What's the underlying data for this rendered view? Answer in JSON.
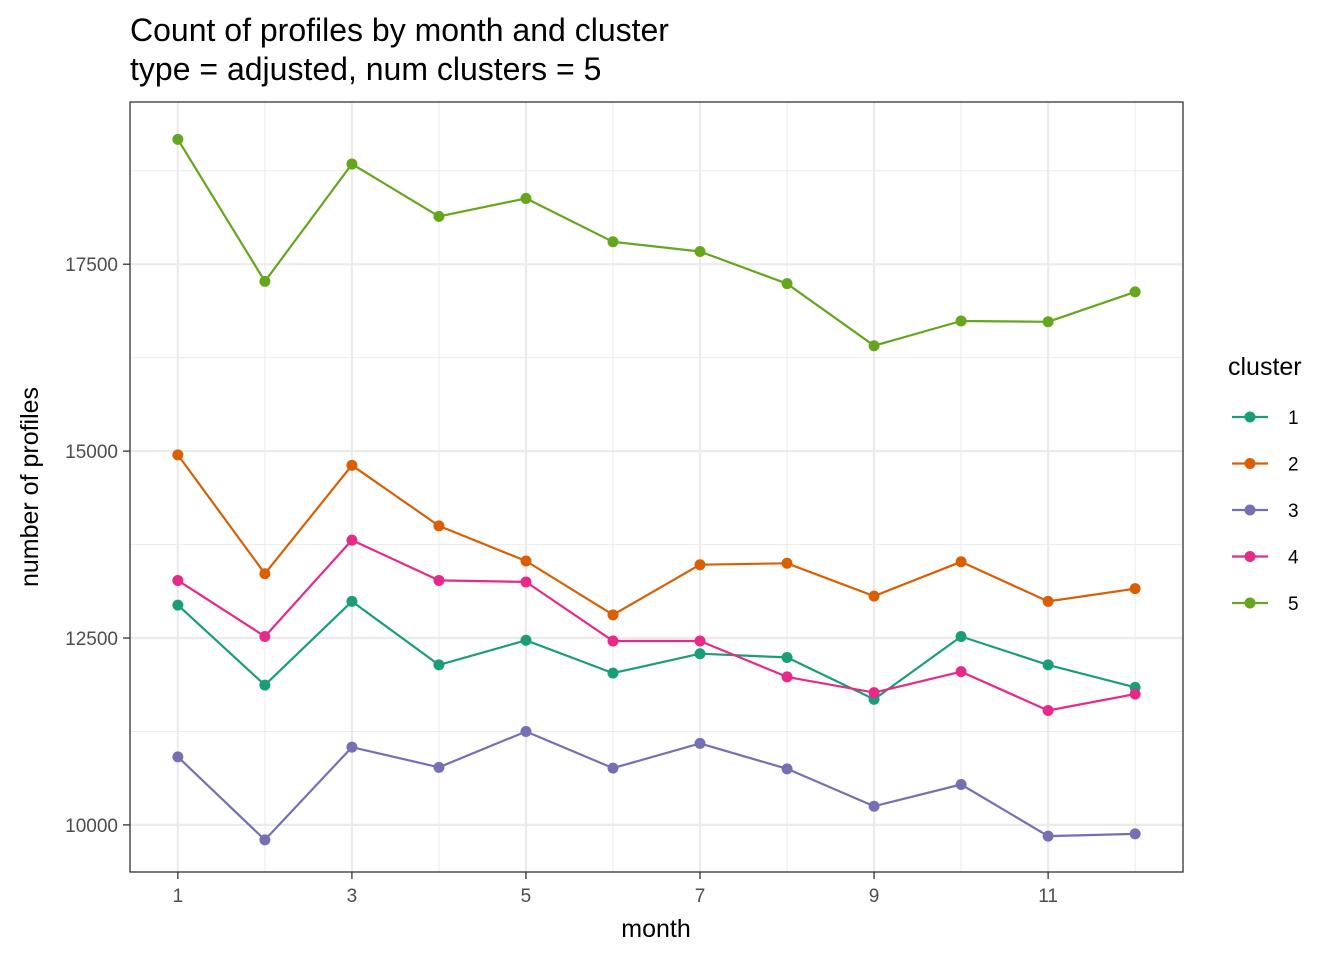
{
  "chart_data": {
    "type": "line",
    "title": "Count of profiles by month and cluster",
    "subtitle": "type = adjusted, num clusters = 5",
    "xlabel": "month",
    "ylabel": "number of profiles",
    "x": [
      1,
      2,
      3,
      4,
      5,
      6,
      7,
      8,
      9,
      10,
      11,
      12
    ],
    "x_ticks": [
      1,
      3,
      5,
      7,
      9,
      11
    ],
    "y_ticks": [
      10000,
      12500,
      15000,
      17500
    ],
    "xlim": [
      0.45,
      12.55
    ],
    "ylim": [
      9370,
      19670
    ],
    "grid": true,
    "legend": {
      "title": "cluster",
      "position": "right"
    },
    "series": [
      {
        "name": "1",
        "color": "#1b9e77",
        "values": [
          12940,
          11870,
          12990,
          12140,
          12470,
          12030,
          12290,
          12240,
          11680,
          12520,
          12140,
          11840
        ]
      },
      {
        "name": "2",
        "color": "#d95f02",
        "values": [
          14950,
          13360,
          14810,
          14000,
          13530,
          12810,
          13480,
          13500,
          13060,
          13520,
          12990,
          13160
        ]
      },
      {
        "name": "3",
        "color": "#7570b3",
        "values": [
          10910,
          9800,
          11040,
          10770,
          11250,
          10760,
          11090,
          10750,
          10250,
          10540,
          9850,
          9880
        ]
      },
      {
        "name": "4",
        "color": "#e7298a",
        "values": [
          13270,
          12520,
          13810,
          13270,
          13250,
          12460,
          12460,
          11980,
          11770,
          12050,
          11530,
          11750
        ]
      },
      {
        "name": "5",
        "color": "#66a61e",
        "values": [
          19170,
          17270,
          18840,
          18140,
          18380,
          17800,
          17670,
          17240,
          16410,
          16740,
          16730,
          17130
        ]
      }
    ]
  }
}
